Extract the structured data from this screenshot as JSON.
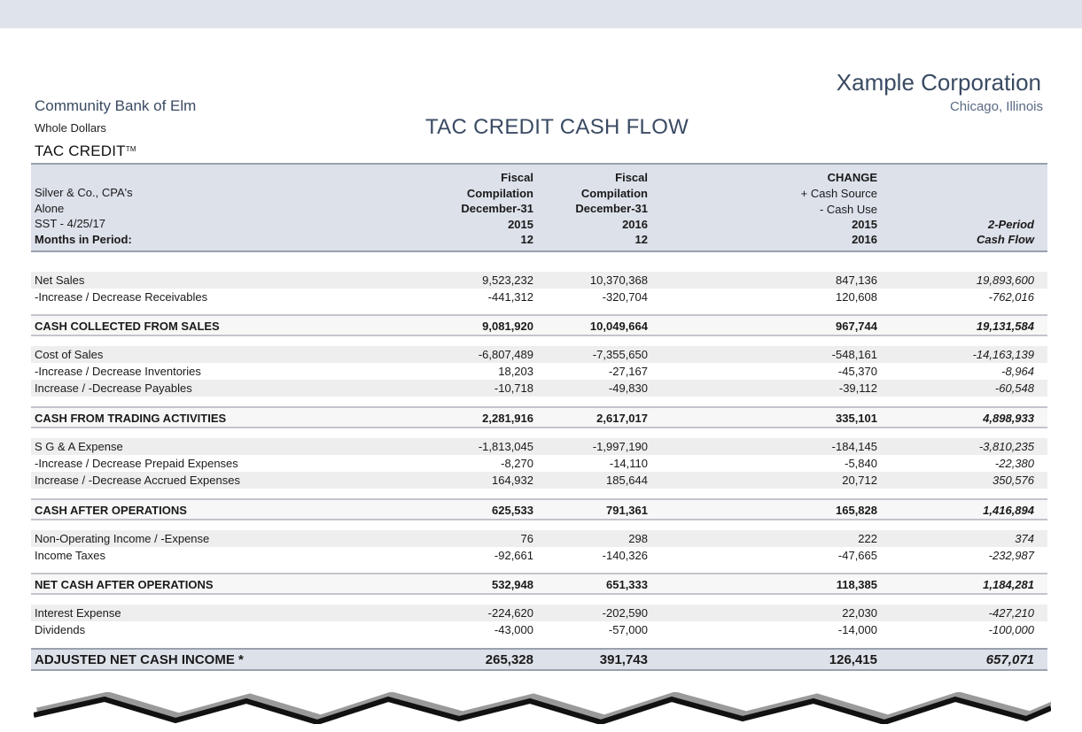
{
  "header": {
    "bank_name": "Community Bank of Elm",
    "units": "Whole Dollars",
    "product": "TAC CREDIT",
    "product_mark": "TM",
    "title": "TAC CREDIT CASH FLOW",
    "company": "Xample Corporation",
    "location": "Chicago, Illinois"
  },
  "table_header": {
    "left_lines": [
      "Silver & Co., CPA's",
      "Alone",
      "SST - 4/25/17",
      "Months in Period:"
    ],
    "col1": [
      "Fiscal",
      "Compilation",
      "December-31",
      "2015",
      "12"
    ],
    "col2": [
      "Fiscal",
      "Compilation",
      "December-31",
      "2016",
      "12"
    ],
    "col3": [
      "CHANGE",
      "+ Cash Source",
      "- Cash Use",
      "2015",
      "2016"
    ],
    "col4": [
      "2-Period",
      "Cash Flow"
    ]
  },
  "sections": [
    {
      "rows": [
        {
          "label": "Net Sales",
          "v1": "9,523,232",
          "v2": "10,370,368",
          "v3": "847,136",
          "v4": "19,893,600"
        },
        {
          "label": "-Increase / Decrease Receivables",
          "v1": "-441,312",
          "v2": "-320,704",
          "v3": "120,608",
          "v4": "-762,016"
        }
      ],
      "total": {
        "label": "CASH COLLECTED FROM SALES",
        "v1": "9,081,920",
        "v2": "10,049,664",
        "v3": "967,744",
        "v4": "19,131,584"
      }
    },
    {
      "rows": [
        {
          "label": "Cost of Sales",
          "v1": "-6,807,489",
          "v2": "-7,355,650",
          "v3": "-548,161",
          "v4": "-14,163,139"
        },
        {
          "label": "-Increase / Decrease Inventories",
          "v1": "18,203",
          "v2": "-27,167",
          "v3": "-45,370",
          "v4": "-8,964"
        },
        {
          "label": "Increase / -Decrease Payables",
          "v1": "-10,718",
          "v2": "-49,830",
          "v3": "-39,112",
          "v4": "-60,548"
        }
      ],
      "total": {
        "label": "CASH FROM TRADING ACTIVITIES",
        "v1": "2,281,916",
        "v2": "2,617,017",
        "v3": "335,101",
        "v4": "4,898,933"
      }
    },
    {
      "rows": [
        {
          "label": "S G & A Expense",
          "v1": "-1,813,045",
          "v2": "-1,997,190",
          "v3": "-184,145",
          "v4": "-3,810,235"
        },
        {
          "label": "-Increase / Decrease Prepaid Expenses",
          "v1": "-8,270",
          "v2": "-14,110",
          "v3": "-5,840",
          "v4": "-22,380"
        },
        {
          "label": "Increase / -Decrease Accrued Expenses",
          "v1": "164,932",
          "v2": "185,644",
          "v3": "20,712",
          "v4": "350,576"
        }
      ],
      "total": {
        "label": "CASH AFTER OPERATIONS",
        "v1": "625,533",
        "v2": "791,361",
        "v3": "165,828",
        "v4": "1,416,894"
      }
    },
    {
      "rows": [
        {
          "label": "Non-Operating Income / -Expense",
          "v1": "76",
          "v2": "298",
          "v3": "222",
          "v4": "374"
        },
        {
          "label": "Income Taxes",
          "v1": "-92,661",
          "v2": "-140,326",
          "v3": "-47,665",
          "v4": "-232,987"
        }
      ],
      "total": {
        "label": "NET CASH AFTER OPERATIONS",
        "v1": "532,948",
        "v2": "651,333",
        "v3": "118,385",
        "v4": "1,184,281"
      }
    },
    {
      "rows": [
        {
          "label": "Interest Expense",
          "v1": "-224,620",
          "v2": "-202,590",
          "v3": "22,030",
          "v4": "-427,210"
        },
        {
          "label": "Dividends",
          "v1": "-43,000",
          "v2": "-57,000",
          "v3": "-14,000",
          "v4": "-100,000"
        }
      ]
    }
  ],
  "final_total": {
    "label": "ADJUSTED NET CASH INCOME  *",
    "v1": "265,328",
    "v2": "391,743",
    "v3": "126,415",
    "v4": "657,071"
  }
}
